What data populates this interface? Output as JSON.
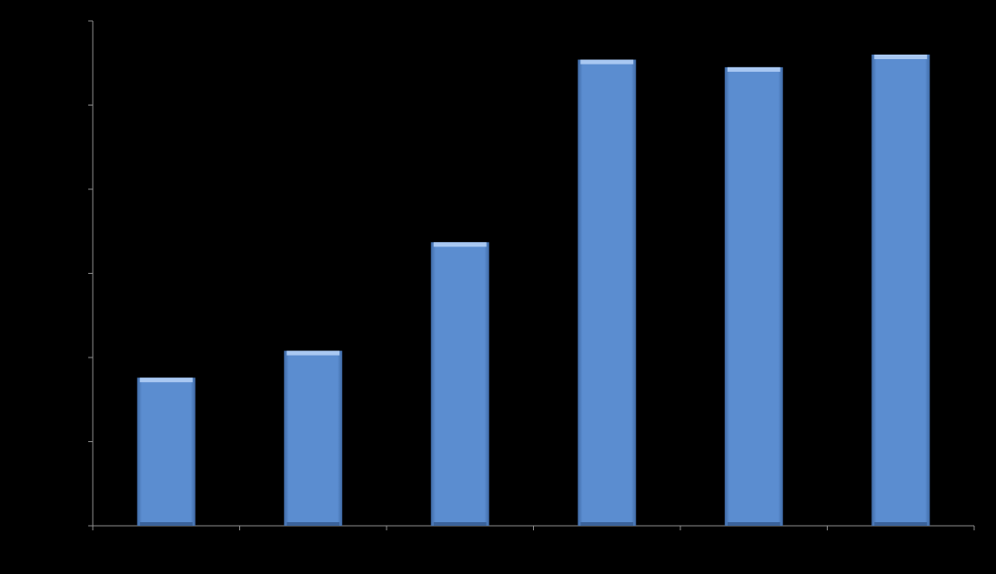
{
  "chart_data": {
    "type": "bar",
    "categories": [
      null,
      null,
      null,
      null,
      null,
      null
    ],
    "values": [
      1.76,
      2.08,
      3.37,
      5.54,
      5.45,
      5.6
    ],
    "color": "#5b8dd0",
    "ylim": [
      0,
      6
    ],
    "yticks": [
      0,
      1,
      2,
      3,
      4,
      5,
      6
    ],
    "grid": false
  }
}
